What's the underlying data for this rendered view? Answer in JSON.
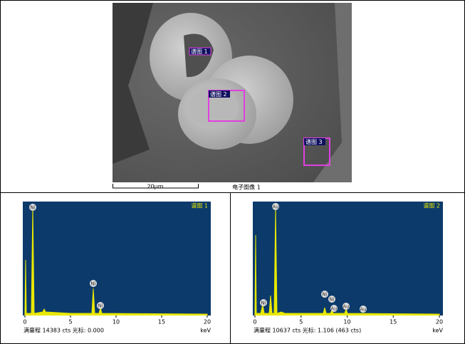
{
  "document": {
    "figure": {
      "region_labels": [
        "谱图 1",
        "谱图 2",
        "谱图 3"
      ],
      "scale_bar": "20µm",
      "caption": "电子图像 1"
    },
    "spectra": [
      {
        "title": "谱图 1",
        "xlim": [
          0,
          20
        ],
        "xticks": [
          0,
          5,
          10,
          15,
          20
        ],
        "unit": "keV",
        "peak_labels": [
          "Ni",
          "Ni",
          "Ni"
        ],
        "footer": "满量程 14383 cts 光标: 0.000"
      },
      {
        "title": "谱图 2",
        "xlim": [
          0,
          20
        ],
        "xticks": [
          0,
          5,
          10,
          15,
          20
        ],
        "unit": "keV",
        "peak_labels": [
          "Au",
          "Ni",
          "Ni",
          "Ni",
          "Au",
          "Au",
          "Au"
        ],
        "footer": "满量程 10637 cts 光标: 1.106 (463 cts)"
      }
    ]
  }
}
